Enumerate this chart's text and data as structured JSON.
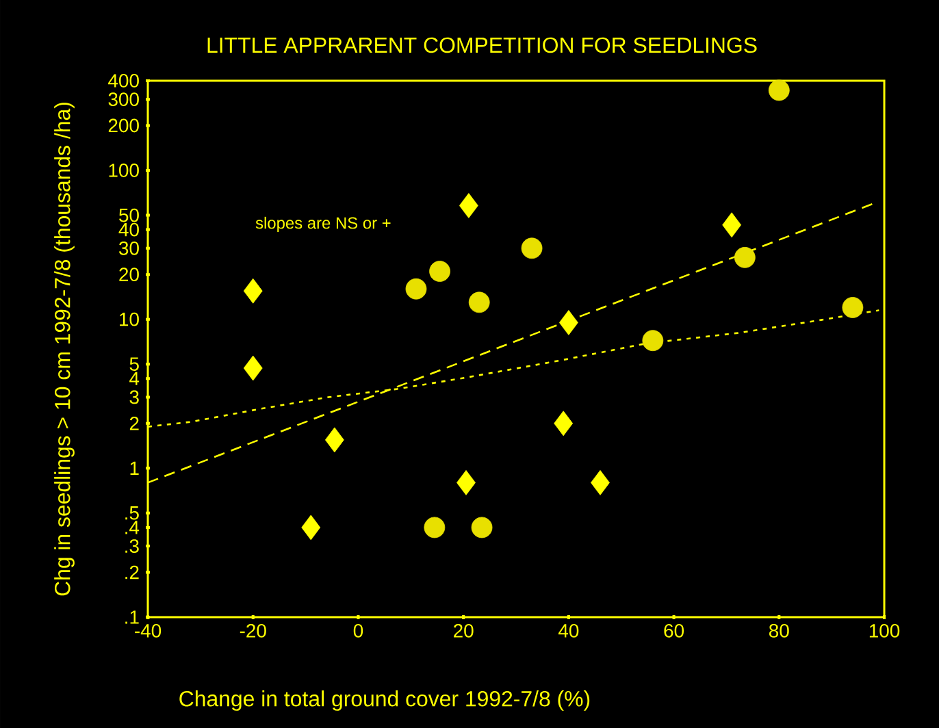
{
  "chart_data": {
    "type": "scatter",
    "title": "LITTLE APPRARENT COMPETITION FOR SEEDLINGS",
    "xlabel": "Change in total ground cover 1992-7/8 (%)",
    "ylabel": "Chg in seedlings > 10 cm 1992-7/8 (thousands /ha)",
    "annotations": [
      "slopes are NS or +"
    ],
    "log": "y",
    "xlim": [
      -40,
      100
    ],
    "ylim": [
      0.1,
      400
    ],
    "xticks": [
      -40,
      -20,
      0,
      20,
      40,
      60,
      80,
      100
    ],
    "yticks": [
      {
        "value": 0.1,
        "label": ".1"
      },
      {
        "value": 0.2,
        "label": ".2"
      },
      {
        "value": 0.3,
        "label": ".3"
      },
      {
        "value": 0.4,
        "label": ".4"
      },
      {
        "value": 0.5,
        "label": ".5"
      },
      1,
      2,
      3,
      4,
      5,
      10,
      20,
      30,
      40,
      50,
      100,
      200,
      300,
      400
    ],
    "series": [
      {
        "marker": "diamond",
        "color": "#ffff00",
        "x": [
          -20,
          -20,
          -9,
          -4.5,
          21,
          20.5,
          40,
          39,
          46,
          71
        ],
        "values": [
          15.5,
          4.7,
          0.4,
          1.55,
          58,
          0.8,
          9.5,
          2,
          0.8,
          43
        ]
      },
      {
        "marker": "circle",
        "color": "#e8e000",
        "x": [
          11,
          15.5,
          23,
          33,
          14.5,
          23.5,
          56,
          73.5,
          80,
          94
        ],
        "values": [
          16,
          21,
          13,
          30,
          0.4,
          0.4,
          7.2,
          26,
          345,
          12
        ]
      },
      {
        "type": "line",
        "line_style": "dashed",
        "color": "#ffff00",
        "x": [
          -40,
          98
        ],
        "values": [
          0.8,
          60
        ]
      },
      {
        "type": "line",
        "line_style": "dotted",
        "color": "#ffff00",
        "x": [
          -40,
          -31.7,
          -18.7,
          -5.7,
          7.3,
          20.3,
          38.5,
          54.9,
          72.3,
          88,
          99
        ],
        "values": [
          1.9,
          2.05,
          2.5,
          3,
          3.4,
          4.05,
          5.3,
          6.9,
          8.1,
          9.9,
          11.5
        ]
      }
    ]
  }
}
